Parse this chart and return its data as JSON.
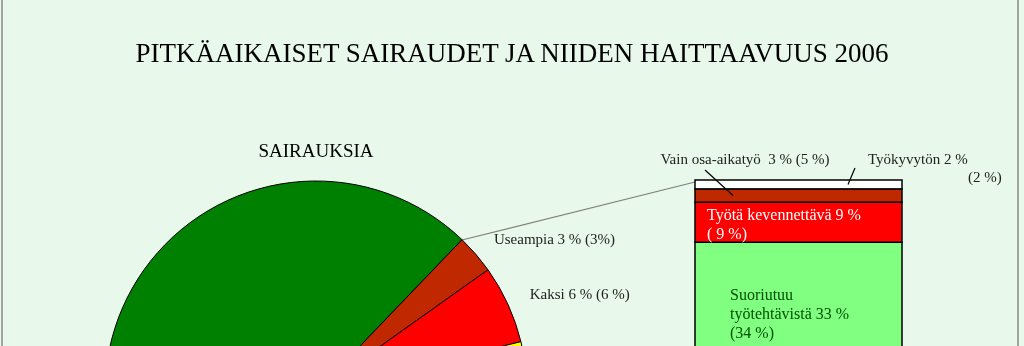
{
  "chart_data": [
    {
      "type": "pie",
      "title": "PITKÄAIKAISET SAIRAUDET JA NIIDEN HAITTAAVUUS 2006",
      "subtitle": "SAIRAUKSIA",
      "categories": [
        null,
        "Useampia 3 % (3%)",
        "Kaksi 6 % (6 %)",
        null
      ],
      "values": [
        53,
        3,
        6,
        38
      ],
      "colors": [
        "#008000",
        "#c02800",
        "#ff0000",
        "#ffff00"
      ]
    },
    {
      "type": "bar",
      "stacked": true,
      "categories": [
        null
      ],
      "series": [
        {
          "color": "#80ff80",
          "values": [
            33
          ],
          "value_labels": [
            "Suoriutuu työtehtävistä 33 % (34 %)"
          ]
        },
        {
          "color": "#ff0000",
          "values": [
            9
          ],
          "value_labels": [
            "Työtä kevennettävä 9 % ( 9 %)"
          ]
        },
        {
          "color": "#c02800",
          "values": [
            3
          ],
          "value_labels": [
            "Vain osa-aikatyö  3 % (5 %)"
          ]
        },
        {
          "color": "#ffffff",
          "values": [
            2
          ],
          "value_labels": [
            "Työkyvytön 2 % (2 %)"
          ]
        }
      ]
    }
  ]
}
